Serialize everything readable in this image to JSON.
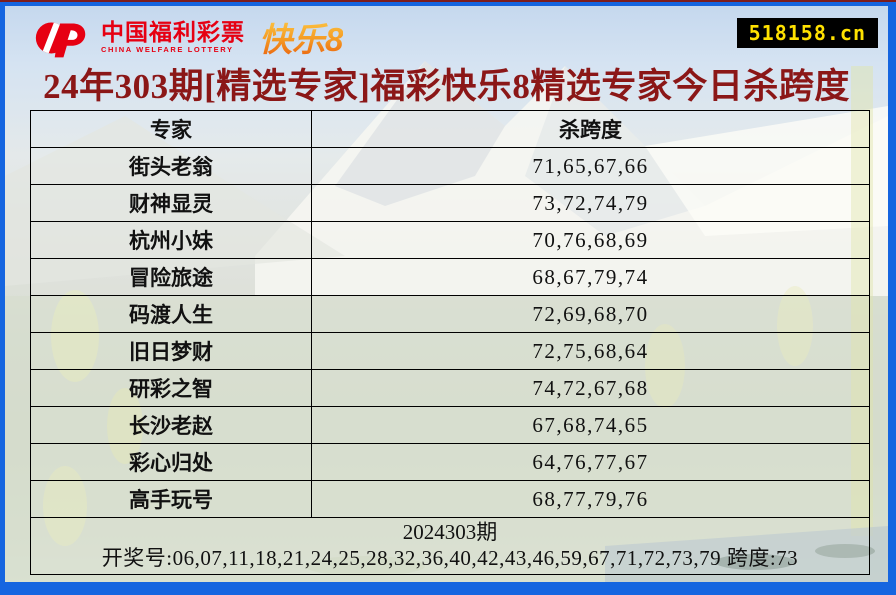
{
  "colors": {
    "frame_blue": "#1565e0",
    "top_strip_red": "#7d1d1d",
    "title_red": "#8b1717",
    "logo_red": "#e60012",
    "brand_orange": "#f59a23",
    "badge_bg": "#000000",
    "badge_text": "#ffe100",
    "table_border": "#000000"
  },
  "header": {
    "logo": {
      "cn": "中国福利彩票",
      "en": "CHINA WELFARE LOTTERY",
      "brand": "快乐8"
    },
    "site_badge": "518158.cn"
  },
  "title": "24年303期[精选专家]福彩快乐8精选专家今日杀跨度",
  "table": {
    "columns": [
      "专家",
      "杀跨度"
    ],
    "rows": [
      {
        "expert": "街头老翁",
        "numbers": "71,65,67,66"
      },
      {
        "expert": "财神显灵",
        "numbers": "73,72,74,79"
      },
      {
        "expert": "杭州小妹",
        "numbers": "70,76,68,69"
      },
      {
        "expert": "冒险旅途",
        "numbers": "68,67,79,74"
      },
      {
        "expert": "码渡人生",
        "numbers": "72,69,68,70"
      },
      {
        "expert": "旧日梦财",
        "numbers": "72,75,68,64"
      },
      {
        "expert": "研彩之智",
        "numbers": "74,72,67,68"
      },
      {
        "expert": "长沙老赵",
        "numbers": "67,68,74,65"
      },
      {
        "expert": "彩心归处",
        "numbers": "64,76,77,67"
      },
      {
        "expert": "高手玩号",
        "numbers": "68,77,79,76"
      }
    ]
  },
  "footer": {
    "period": "2024303期",
    "draw_line": "开奖号:06,07,11,18,21,24,25,28,32,36,40,42,43,46,59,67,71,72,73,79 跨度:73"
  }
}
